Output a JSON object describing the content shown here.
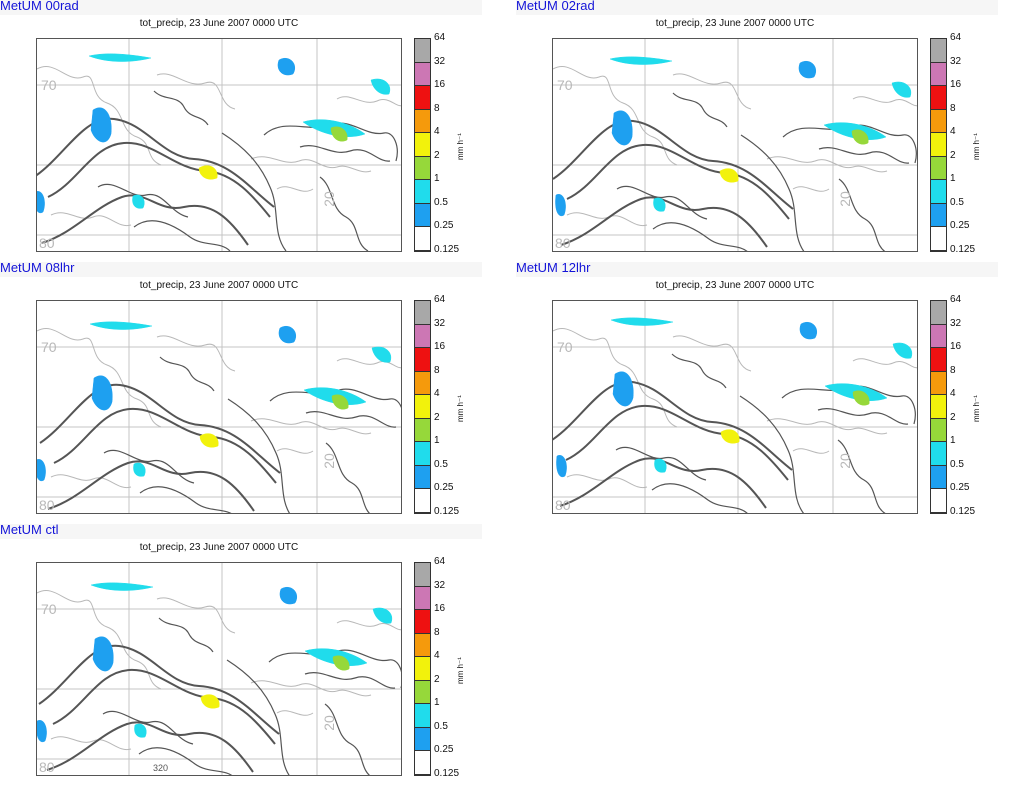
{
  "panels": [
    {
      "title": "MetUM 00rad",
      "subtitle": "tot_precip, 23 June 2007 0000 UTC"
    },
    {
      "title": "MetUM 02rad",
      "subtitle": "tot_precip, 23 June 2007 0000 UTC"
    },
    {
      "title": "MetUM 08lhr",
      "subtitle": "tot_precip, 23 June 2007 0000 UTC"
    },
    {
      "title": "MetUM 12lhr",
      "subtitle": "tot_precip, 23 June 2007 0000 UTC"
    },
    {
      "title": "MetUM ctl",
      "subtitle": "tot_precip, 23 June 2007 0000 UTC"
    }
  ],
  "map_labels": {
    "lat_upper": "70",
    "lat_lower": "80",
    "lon": "20",
    "contour_value": "320"
  },
  "colorbar": {
    "unit": "mm h⁻¹",
    "levels": [
      "64",
      "32",
      "16",
      "8",
      "4",
      "2",
      "1",
      "0.5",
      "0.25",
      "0.125"
    ],
    "colors": [
      "#a8a8a8",
      "#cc77b4",
      "#ee1111",
      "#f59a0c",
      "#f2f20c",
      "#96d83a",
      "#20dcec",
      "#1ea0f0",
      "#ffffff"
    ]
  },
  "chart_data": {
    "type": "heatmap",
    "variable": "tot_precip",
    "valid_time": "23 June 2007 0000 UTC",
    "runs": [
      "MetUM 00rad",
      "MetUM 02rad",
      "MetUM 08lhr",
      "MetUM 12lhr",
      "MetUM ctl"
    ],
    "colorbar_levels": [
      0.125,
      0.25,
      0.5,
      1,
      2,
      4,
      8,
      16,
      32,
      64
    ],
    "colorbar_unit": "mm h⁻¹",
    "map_tick_labels": [
      "70",
      "80",
      "20",
      "320"
    ]
  }
}
